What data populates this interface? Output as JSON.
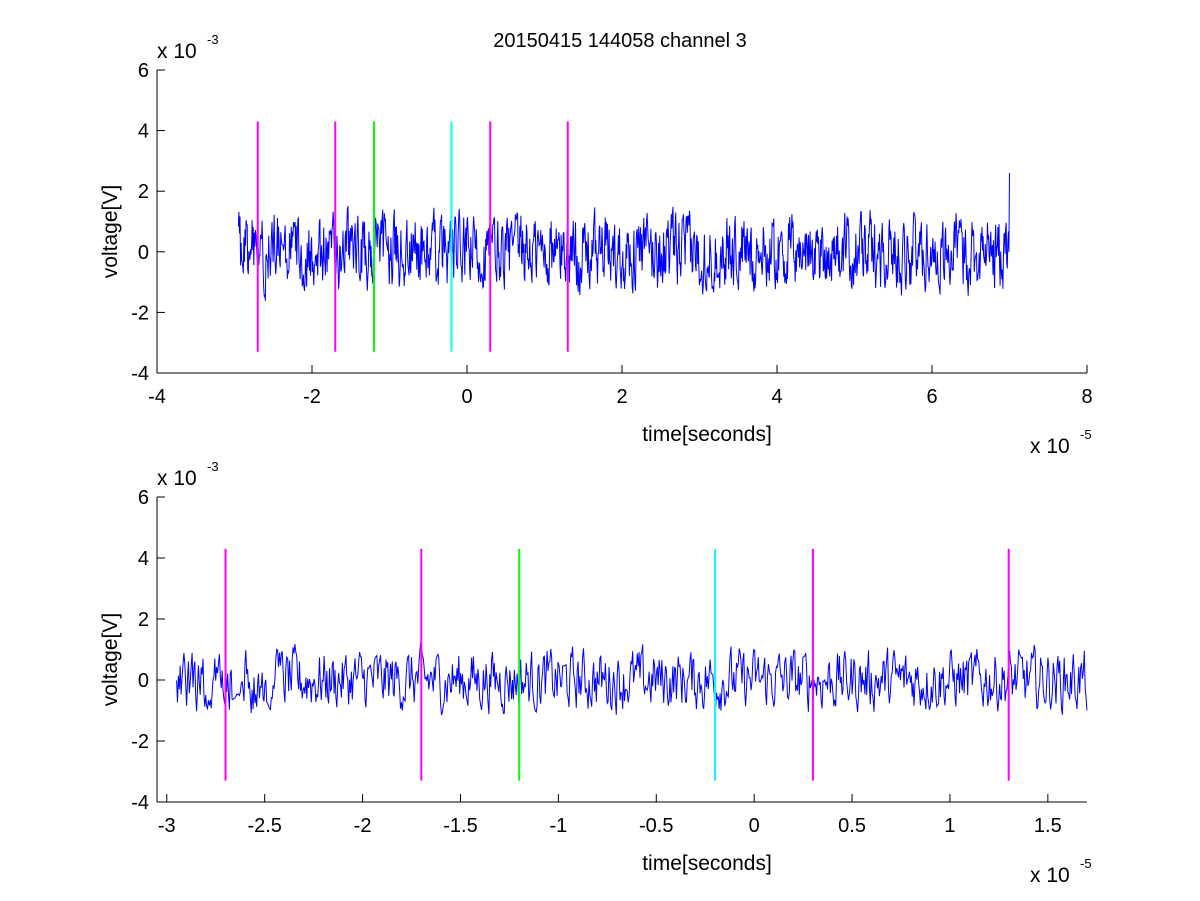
{
  "figure_title": "20150415 144058 channel 3",
  "colors": {
    "signal": "#0000ff",
    "magenta": "#ff00ff",
    "green": "#00ff00",
    "cyan": "#00ffff",
    "axes": "#000000",
    "background": "#ffffff"
  },
  "chart_data": [
    {
      "type": "line",
      "title": "20150415 144058 channel 3",
      "xlabel": "time[seconds]",
      "ylabel": "voltage[V]",
      "x_exponent_label": "x 10",
      "x_exponent": "-5",
      "y_exponent_label": "x 10",
      "y_exponent": "-3",
      "xlim": [
        -4,
        8
      ],
      "ylim": [
        -4,
        6
      ],
      "xticks": [
        -4,
        -2,
        0,
        2,
        4,
        6,
        8
      ],
      "xtick_labels": [
        "-4",
        "-2",
        "0",
        "2",
        "4",
        "6",
        "8"
      ],
      "yticks": [
        -4,
        -2,
        0,
        2,
        4,
        6
      ],
      "ytick_labels": [
        "-4",
        "-2",
        "0",
        "2",
        "4",
        "6"
      ],
      "grid": false,
      "legend": "none",
      "signal_x_range": [
        -2.95,
        7.0
      ],
      "signal_end_value": 2.6,
      "signal_amplitude": 1.8,
      "markers": [
        {
          "x": -2.7,
          "color": "magenta",
          "y_range": [
            -3.3,
            4.3
          ]
        },
        {
          "x": -1.7,
          "color": "magenta",
          "y_range": [
            -3.3,
            4.3
          ]
        },
        {
          "x": -1.2,
          "color": "green",
          "y_range": [
            -3.3,
            4.3
          ]
        },
        {
          "x": -0.2,
          "color": "cyan",
          "y_range": [
            -3.3,
            4.3
          ]
        },
        {
          "x": 0.3,
          "color": "magenta",
          "y_range": [
            -3.3,
            4.3
          ]
        },
        {
          "x": 1.3,
          "color": "magenta",
          "y_range": [
            -3.3,
            4.3
          ]
        }
      ]
    },
    {
      "type": "line",
      "xlabel": "time[seconds]",
      "ylabel": "voltage[V]",
      "x_exponent_label": "x 10",
      "x_exponent": "-5",
      "y_exponent_label": "x 10",
      "y_exponent": "-3",
      "xlim": [
        -3.05,
        1.7
      ],
      "ylim": [
        -4,
        6
      ],
      "xticks": [
        -3,
        -2.5,
        -2,
        -1.5,
        -1,
        -0.5,
        0,
        0.5,
        1,
        1.5
      ],
      "xtick_labels": [
        "-3",
        "-2.5",
        "-2",
        "-1.5",
        "-1",
        "-0.5",
        "0",
        "0.5",
        "1",
        "1.5"
      ],
      "yticks": [
        -4,
        -2,
        0,
        2,
        4,
        6
      ],
      "ytick_labels": [
        "-4",
        "-2",
        "0",
        "2",
        "4",
        "6"
      ],
      "grid": false,
      "legend": "none",
      "signal_x_range": [
        -2.95,
        1.7
      ],
      "signal_end_value": -1.0,
      "signal_amplitude": 1.5,
      "markers": [
        {
          "x": -2.7,
          "color": "magenta",
          "y_range": [
            -3.3,
            4.3
          ]
        },
        {
          "x": -1.7,
          "color": "magenta",
          "y_range": [
            -3.3,
            4.3
          ]
        },
        {
          "x": -1.2,
          "color": "green",
          "y_range": [
            -3.3,
            4.3
          ]
        },
        {
          "x": -0.2,
          "color": "cyan",
          "y_range": [
            -3.3,
            4.3
          ]
        },
        {
          "x": 0.3,
          "color": "magenta",
          "y_range": [
            -3.3,
            4.3
          ]
        },
        {
          "x": 1.3,
          "color": "magenta",
          "y_range": [
            -3.3,
            4.3
          ]
        }
      ]
    }
  ]
}
